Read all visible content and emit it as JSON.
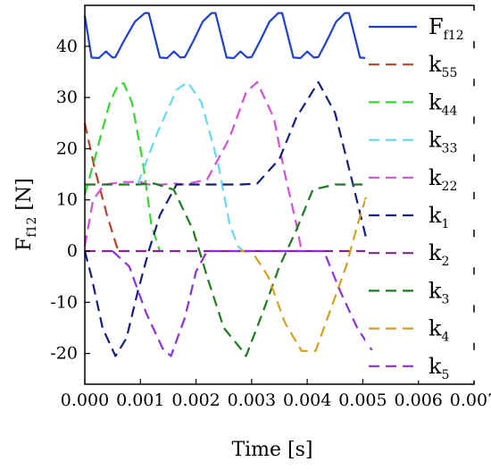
{
  "chart_data": {
    "type": "line",
    "xlabel": "Time [s]",
    "ylabel": {
      "main": "F",
      "sub": "f12",
      "unit": " [N]"
    },
    "xlim": [
      0.0,
      0.007
    ],
    "ylim": [
      -26,
      48
    ],
    "xticks": [
      0.0,
      0.001,
      0.002,
      0.003,
      0.004,
      0.005,
      0.006,
      0.007
    ],
    "xtick_labels": [
      "0.000",
      "0.001",
      "0.002",
      "0.003",
      "0.004",
      "0.005",
      "0.006",
      "0.007"
    ],
    "yticks": [
      -20,
      -10,
      0,
      10,
      20,
      30,
      40
    ],
    "ytick_labels": [
      "-20",
      "-10",
      "0",
      "10",
      "20",
      "30",
      "40"
    ],
    "grid": false,
    "legend_position": "right",
    "series": [
      {
        "name": "F",
        "sub": "f12",
        "color": "#1f3fd8",
        "dash": "solid",
        "points": [
          [
            0.0,
            46
          ],
          [
            0.00012,
            37.8
          ],
          [
            0.00025,
            37.7
          ],
          [
            0.00038,
            39
          ],
          [
            0.0005,
            37.8
          ],
          [
            0.00055,
            37.9
          ],
          [
            0.0007,
            41
          ],
          [
            0.0009,
            44.8
          ],
          [
            0.00108,
            46.5
          ],
          [
            0.00115,
            46.5
          ],
          [
            0.00135,
            37.8
          ],
          [
            0.00148,
            37.7
          ],
          [
            0.0016,
            39
          ],
          [
            0.00172,
            37.8
          ],
          [
            0.0018,
            37.9
          ],
          [
            0.00195,
            41
          ],
          [
            0.00212,
            44.8
          ],
          [
            0.00228,
            46.5
          ],
          [
            0.00235,
            46.5
          ],
          [
            0.00255,
            37.8
          ],
          [
            0.00268,
            37.7
          ],
          [
            0.0028,
            39
          ],
          [
            0.00292,
            37.8
          ],
          [
            0.003,
            37.9
          ],
          [
            0.00315,
            41
          ],
          [
            0.00332,
            44.8
          ],
          [
            0.00348,
            46.5
          ],
          [
            0.00355,
            46.5
          ],
          [
            0.00375,
            37.8
          ],
          [
            0.00388,
            37.7
          ],
          [
            0.004,
            39
          ],
          [
            0.00412,
            37.8
          ],
          [
            0.0042,
            37.9
          ],
          [
            0.00435,
            41
          ],
          [
            0.00452,
            44.8
          ],
          [
            0.00468,
            46.5
          ],
          [
            0.00475,
            46.5
          ],
          [
            0.00495,
            37.8
          ],
          [
            0.00508,
            37.7
          ],
          [
            0.0052,
            39
          ],
          [
            0.00527,
            37.6
          ]
        ]
      },
      {
        "name": "k",
        "sub": "55",
        "color": "#b5442a",
        "dash": "dashed",
        "points": [
          [
            0.0,
            25
          ],
          [
            0.00018,
            16
          ],
          [
            0.0004,
            7
          ],
          [
            0.0006,
            0
          ],
          [
            0.0007,
            0
          ]
        ]
      },
      {
        "name": "k",
        "sub": "44",
        "color": "#33d633",
        "dash": "dashed",
        "points": [
          [
            0.0,
            11
          ],
          [
            0.0002,
            19
          ],
          [
            0.00045,
            29
          ],
          [
            0.0006,
            32.5
          ],
          [
            0.0007,
            32.8
          ],
          [
            0.00085,
            29
          ],
          [
            0.00105,
            17
          ],
          [
            0.0012,
            5
          ],
          [
            0.00135,
            0
          ],
          [
            0.0014,
            0
          ]
        ]
      },
      {
        "name": "k",
        "sub": "33",
        "color": "#66d8f0",
        "dash": "dashed",
        "points": [
          [
            0.00095,
            13
          ],
          [
            0.0013,
            23
          ],
          [
            0.00165,
            31.5
          ],
          [
            0.00185,
            33
          ],
          [
            0.0021,
            29
          ],
          [
            0.0024,
            17
          ],
          [
            0.0026,
            5.5
          ],
          [
            0.00275,
            1
          ],
          [
            0.00285,
            0
          ]
        ]
      },
      {
        "name": "k",
        "sub": "22",
        "color": "#d050d8",
        "dash": "dashed",
        "points": [
          [
            0.0,
            1
          ],
          [
            0.00015,
            10
          ],
          [
            0.00035,
            13
          ],
          [
            0.0007,
            13.5
          ],
          [
            0.001,
            13.5
          ],
          [
            0.00115,
            13
          ],
          [
            0.0014,
            13
          ],
          [
            0.0016,
            13.2
          ],
          [
            0.0018,
            13
          ],
          [
            0.0022,
            14
          ],
          [
            0.0026,
            22
          ],
          [
            0.0029,
            31
          ],
          [
            0.0031,
            33
          ],
          [
            0.0034,
            26
          ],
          [
            0.0036,
            15
          ],
          [
            0.0038,
            5.5
          ],
          [
            0.0039,
            0
          ]
        ]
      },
      {
        "name": "k",
        "sub": "1",
        "color": "#16207a",
        "dash": "dashed",
        "points": [
          [
            0.0,
            0
          ],
          [
            0.00012,
            -5
          ],
          [
            0.00032,
            -15
          ],
          [
            0.00055,
            -20.5
          ],
          [
            0.00075,
            -17
          ],
          [
            0.00095,
            -8
          ],
          [
            0.00115,
            0
          ],
          [
            0.00135,
            7
          ],
          [
            0.00165,
            13
          ],
          [
            0.002,
            13
          ],
          [
            0.0024,
            13
          ],
          [
            0.0028,
            13
          ],
          [
            0.0031,
            13.2
          ],
          [
            0.0035,
            18
          ],
          [
            0.0038,
            26
          ],
          [
            0.0042,
            33
          ],
          [
            0.0045,
            27
          ],
          [
            0.0048,
            14
          ],
          [
            0.00505,
            3
          ],
          [
            0.0052,
            0
          ]
        ]
      },
      {
        "name": "k",
        "sub": "2",
        "color": "#7a2e8a",
        "dash": "dashed",
        "points": [
          [
            0.0,
            0
          ],
          [
            0.001,
            0
          ],
          [
            0.002,
            0
          ],
          [
            0.003,
            0
          ],
          [
            0.004,
            0
          ],
          [
            0.005,
            0
          ],
          [
            0.0053,
            0
          ]
        ]
      },
      {
        "name": "k",
        "sub": "3",
        "color": "#1f7a1f",
        "dash": "dashed",
        "points": [
          [
            0.0,
            13
          ],
          [
            0.0005,
            13
          ],
          [
            0.00095,
            13
          ],
          [
            0.00125,
            13.2
          ],
          [
            0.0016,
            12
          ],
          [
            0.00195,
            4
          ],
          [
            0.0022,
            -5
          ],
          [
            0.0025,
            -15
          ],
          [
            0.0028,
            -19
          ],
          [
            0.0029,
            -20.5
          ],
          [
            0.0032,
            -12
          ],
          [
            0.0035,
            -3
          ],
          [
            0.0038,
            4
          ],
          [
            0.0041,
            12
          ],
          [
            0.0045,
            13
          ],
          [
            0.0052,
            13
          ]
        ]
      },
      {
        "name": "k",
        "sub": "4",
        "color": "#d4a020",
        "dash": "dashed",
        "points": [
          [
            0.0028,
            0
          ],
          [
            0.003,
            0
          ],
          [
            0.0033,
            -5
          ],
          [
            0.0036,
            -14
          ],
          [
            0.0039,
            -19.5
          ],
          [
            0.00415,
            -19.5
          ],
          [
            0.0044,
            -12
          ],
          [
            0.0047,
            -3
          ],
          [
            0.0049,
            5
          ],
          [
            0.0051,
            12
          ],
          [
            0.0052,
            13
          ]
        ]
      },
      {
        "name": "k",
        "sub": "5",
        "color": "#8a30e0",
        "dash": "dashed",
        "points": [
          [
            0.0005,
            0
          ],
          [
            0.0008,
            -3
          ],
          [
            0.0011,
            -12
          ],
          [
            0.0014,
            -19
          ],
          [
            0.00155,
            -20.5
          ],
          [
            0.0018,
            -13
          ],
          [
            0.002,
            -4
          ],
          [
            0.0022,
            0
          ],
          [
            0.003,
            0
          ],
          [
            0.004,
            0
          ],
          [
            0.0043,
            0
          ],
          [
            0.0046,
            -8
          ],
          [
            0.0049,
            -15
          ],
          [
            0.0052,
            -20
          ]
        ]
      }
    ]
  }
}
